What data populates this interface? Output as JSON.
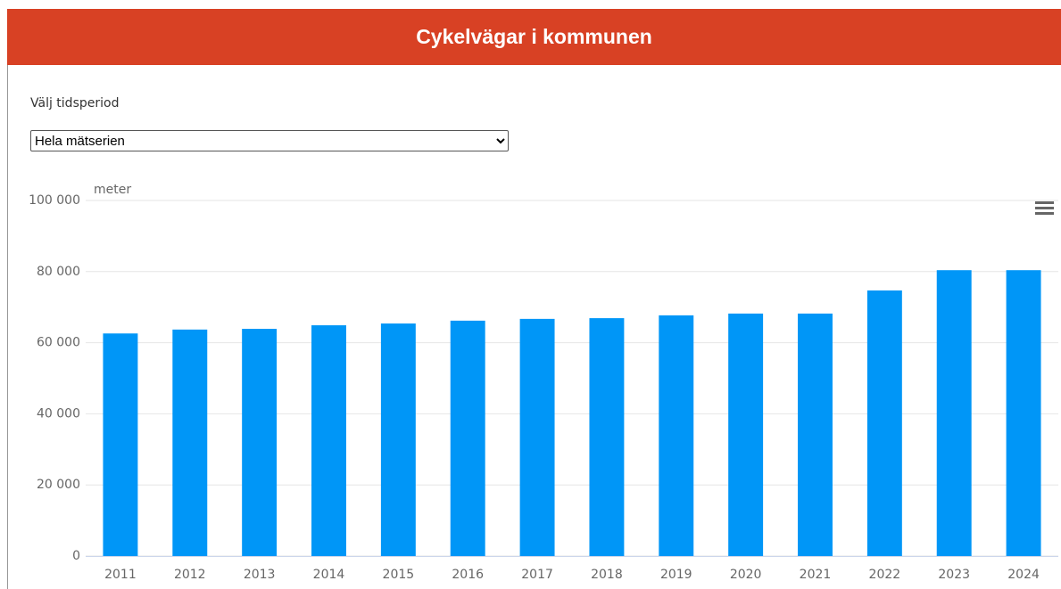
{
  "header": {
    "title": "Cykelvägar i kommunen"
  },
  "selector": {
    "label": "Välj tidsperiod",
    "selected": "Hela mätserien"
  },
  "chart_data": {
    "type": "bar",
    "y_axis_label": "meter",
    "categories": [
      "2011",
      "2012",
      "2013",
      "2014",
      "2015",
      "2016",
      "2017",
      "2018",
      "2019",
      "2020",
      "2021",
      "2022",
      "2023",
      "2024"
    ],
    "values": [
      62600,
      63700,
      63900,
      64900,
      65400,
      66200,
      66700,
      66900,
      67700,
      68200,
      68200,
      74700,
      80400,
      80400
    ],
    "color": "#0096f7",
    "ylim": [
      0,
      100000
    ],
    "yticks": [
      0,
      {
        "value": 20000,
        "label": "20 000"
      },
      {
        "value": 40000,
        "label": "40 000"
      },
      {
        "value": 60000,
        "label": "60 000"
      },
      {
        "value": 80000,
        "label": "80 000"
      },
      {
        "value": 100000,
        "label": "100 000"
      }
    ],
    "grid": true
  }
}
